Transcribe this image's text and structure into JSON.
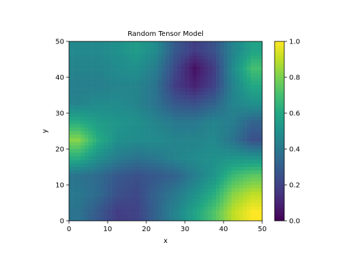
{
  "chart_data": {
    "type": "heatmap",
    "title": "Random Tensor Model",
    "xlabel": "x",
    "ylabel": "y",
    "xlim": [
      0,
      50
    ],
    "ylim": [
      0,
      50
    ],
    "grid": false,
    "colormap": "viridis",
    "colorbar": {
      "range": [
        0,
        1
      ],
      "ticks": [
        0.0,
        0.2,
        0.4,
        0.6,
        0.8,
        1.0
      ],
      "tick_labels": [
        "0.0",
        "0.2",
        "0.4",
        "0.6",
        "0.8",
        "1.0"
      ]
    },
    "x_ticks": [
      0,
      10,
      20,
      30,
      40,
      50
    ],
    "x_tick_labels": [
      "0",
      "10",
      "20",
      "30",
      "40",
      "50"
    ],
    "y_ticks": [
      0,
      10,
      20,
      30,
      40,
      50
    ],
    "y_tick_labels": [
      "0",
      "10",
      "20",
      "30",
      "40",
      "50"
    ],
    "y_cell_centers": [
      47.5,
      42.5,
      37.5,
      32.5,
      27.5,
      22.5,
      17.5,
      12.5,
      7.5,
      2.5
    ],
    "x_cell_centers": [
      2.5,
      7.5,
      12.5,
      17.5,
      22.5,
      27.5,
      32.5,
      37.5,
      42.5,
      47.5
    ],
    "values": [
      [
        0.47,
        0.47,
        0.5,
        0.55,
        0.48,
        0.28,
        0.18,
        0.25,
        0.45,
        0.58
      ],
      [
        0.45,
        0.45,
        0.48,
        0.5,
        0.42,
        0.22,
        0.05,
        0.18,
        0.48,
        0.7
      ],
      [
        0.43,
        0.43,
        0.45,
        0.45,
        0.38,
        0.18,
        0.1,
        0.2,
        0.45,
        0.6
      ],
      [
        0.45,
        0.48,
        0.48,
        0.45,
        0.38,
        0.28,
        0.25,
        0.32,
        0.45,
        0.5
      ],
      [
        0.62,
        0.55,
        0.52,
        0.5,
        0.45,
        0.4,
        0.4,
        0.45,
        0.42,
        0.32
      ],
      [
        0.82,
        0.62,
        0.5,
        0.48,
        0.48,
        0.45,
        0.45,
        0.47,
        0.38,
        0.25
      ],
      [
        0.62,
        0.5,
        0.42,
        0.38,
        0.4,
        0.45,
        0.48,
        0.5,
        0.52,
        0.52
      ],
      [
        0.38,
        0.35,
        0.28,
        0.25,
        0.28,
        0.32,
        0.42,
        0.52,
        0.68,
        0.75
      ],
      [
        0.4,
        0.35,
        0.25,
        0.22,
        0.32,
        0.4,
        0.5,
        0.62,
        0.82,
        0.9
      ],
      [
        0.38,
        0.28,
        0.18,
        0.2,
        0.32,
        0.45,
        0.58,
        0.72,
        0.9,
        1.0
      ]
    ]
  }
}
